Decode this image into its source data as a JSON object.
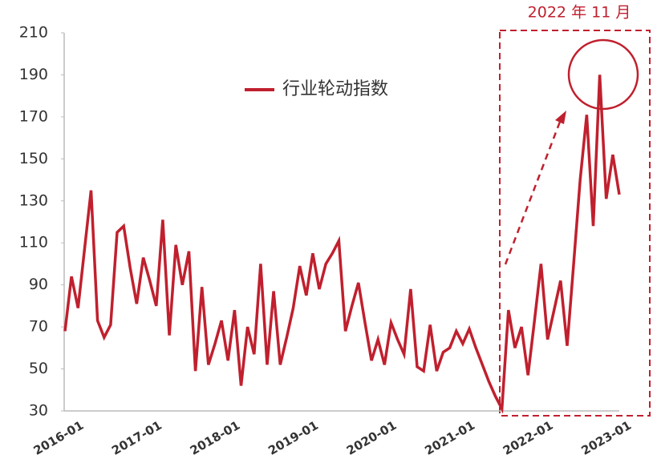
{
  "chart_data": {
    "type": "line",
    "annotation": "2022 年 11 月",
    "categories": [
      "2016-01",
      null,
      null,
      null,
      null,
      null,
      null,
      null,
      null,
      null,
      null,
      null,
      "2017-01",
      null,
      null,
      null,
      null,
      null,
      null,
      null,
      null,
      null,
      null,
      null,
      "2018-01",
      null,
      null,
      null,
      null,
      null,
      null,
      null,
      null,
      null,
      null,
      null,
      "2019-01",
      null,
      null,
      null,
      null,
      null,
      null,
      null,
      null,
      null,
      null,
      null,
      "2020-01",
      null,
      null,
      null,
      null,
      null,
      null,
      null,
      null,
      null,
      null,
      null,
      "2021-01",
      null,
      null,
      null,
      null,
      null,
      null,
      null,
      null,
      null,
      null,
      null,
      "2022-01",
      null,
      null,
      null,
      null,
      null,
      null,
      null,
      null,
      null,
      null,
      null,
      "2023-01",
      null
    ],
    "series": [
      {
        "name": "行业轮动指数",
        "color": "#c0202e",
        "values": [
          68,
          94,
          79,
          107,
          135,
          73,
          65,
          71,
          115,
          118,
          98,
          81,
          103,
          92,
          80,
          121,
          66,
          109,
          90,
          106,
          49,
          89,
          52,
          62,
          73,
          54,
          78,
          42,
          70,
          57,
          100,
          52,
          87,
          52,
          65,
          79,
          99,
          85,
          105,
          88,
          100,
          105,
          111,
          68,
          80,
          91,
          72,
          54,
          64,
          52,
          72,
          64,
          57,
          88,
          51,
          49,
          71,
          49,
          58,
          60,
          68,
          62,
          69,
          60,
          52,
          44,
          37,
          31,
          78,
          60,
          70,
          47,
          73,
          100,
          64,
          78,
          92,
          61,
          100,
          140,
          171,
          118,
          190,
          131,
          152,
          133
        ]
      }
    ],
    "ylim": [
      30,
      210
    ],
    "yticks": [
      30,
      50,
      70,
      90,
      110,
      130,
      150,
      170,
      190,
      210
    ],
    "grid": false
  }
}
